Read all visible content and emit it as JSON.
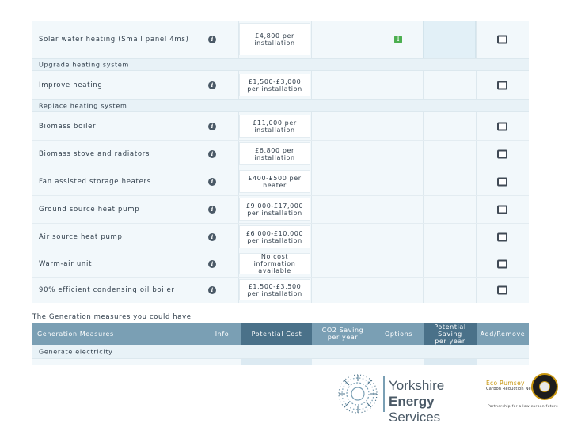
{
  "rows": [
    {
      "name": "Solar water heating (Small panel 4ms)",
      "cost": "£4,800 per\ninstallation",
      "selected": true
    },
    {
      "section": "Upgrade heating system"
    },
    {
      "name": "Improve heating",
      "cost": "£1,500-£3,000\nper installation"
    },
    {
      "section": "Replace heating system"
    },
    {
      "name": "Biomass boiler",
      "cost": "£11,000 per\ninstallation"
    },
    {
      "name": "Biomass stove and radiators",
      "cost": "£6,800 per\ninstallation"
    },
    {
      "name": "Fan assisted storage heaters",
      "cost": "£400-£500 per\nheater"
    },
    {
      "name": "Ground source heat pump",
      "cost": "£9,000-£17,000\nper installation"
    },
    {
      "name": "Air source heat pump",
      "cost": "£6,000-£10,000\nper installation"
    },
    {
      "name": "Warm-air unit",
      "cost": "No cost\ninformation\navailable"
    },
    {
      "name": "90% efficient condensing oil boiler",
      "cost": "£1,500-£3,500\nper installation"
    }
  ],
  "caption": "The Generation measures you could have",
  "table_header": {
    "measures": "Generation Measures",
    "info": "Info",
    "potential_cost": "Potential Cost",
    "co2": "CO2 Saving\nper year",
    "options": "Options",
    "potential_saving": "Potential\nSaving\nper year",
    "add_remove": "Add/Remove"
  },
  "generate_section": "Generate electricity",
  "logo": {
    "line1": "Yorkshire",
    "line2_bold": "Energy",
    "line2_rest": " Services"
  },
  "eco": {
    "name": "Eco Rumsey",
    "sub": "Carbon Reduction Network",
    "tagline": "Partnership for a low carbon future"
  },
  "colors": {
    "header": "#7a9fb4",
    "header_dark": "#4a7189",
    "panel": "#f2f8fb",
    "accent_green": "#4caf50",
    "gold": "#c8960e"
  },
  "icons": {
    "info": "info-icon",
    "add": "green-download-icon",
    "checkbox": "checkbox-icon"
  }
}
